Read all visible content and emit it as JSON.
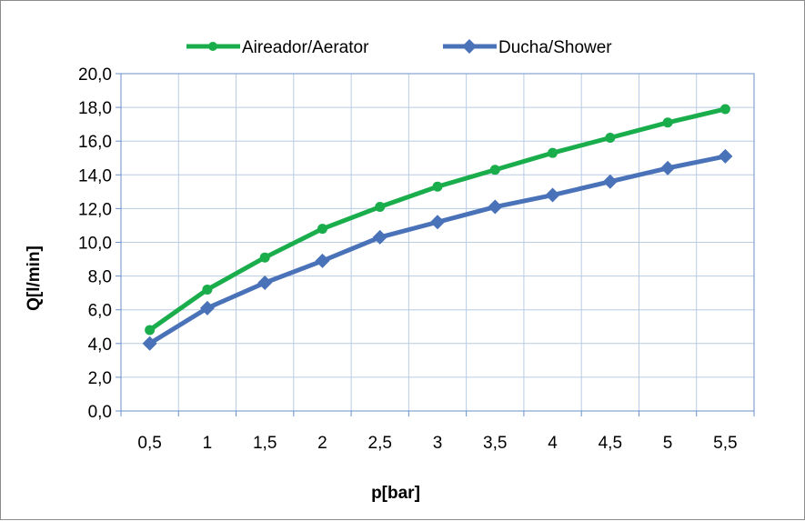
{
  "chart_data": {
    "type": "line",
    "title": "",
    "xlabel": "p[bar]",
    "ylabel": "Q[l/min]",
    "categories": [
      "0,5",
      "1",
      "1,5",
      "2",
      "2,5",
      "3",
      "3,5",
      "4",
      "4,5",
      "5",
      "5,5"
    ],
    "x": [
      0.5,
      1,
      1.5,
      2,
      2.5,
      3,
      3.5,
      4,
      4.5,
      5,
      5.5
    ],
    "ylim": [
      0,
      20
    ],
    "yticks": [
      "0,0",
      "2,0",
      "4,0",
      "6,0",
      "8,0",
      "10,0",
      "12,0",
      "14,0",
      "16,0",
      "18,0",
      "20,0"
    ],
    "grid": true,
    "legend_position": "top-center",
    "series": [
      {
        "name": "Aireador/Aerator",
        "color": "#1aad4b",
        "marker": "circle",
        "values": [
          4.8,
          7.2,
          9.1,
          10.8,
          12.1,
          13.3,
          14.3,
          15.3,
          16.2,
          17.1,
          17.9
        ]
      },
      {
        "name": "Ducha/Shower",
        "color": "#4a72b8",
        "marker": "diamond",
        "values": [
          4.0,
          6.1,
          7.6,
          8.9,
          10.3,
          11.2,
          12.1,
          12.8,
          13.6,
          14.4,
          15.1
        ]
      }
    ]
  }
}
